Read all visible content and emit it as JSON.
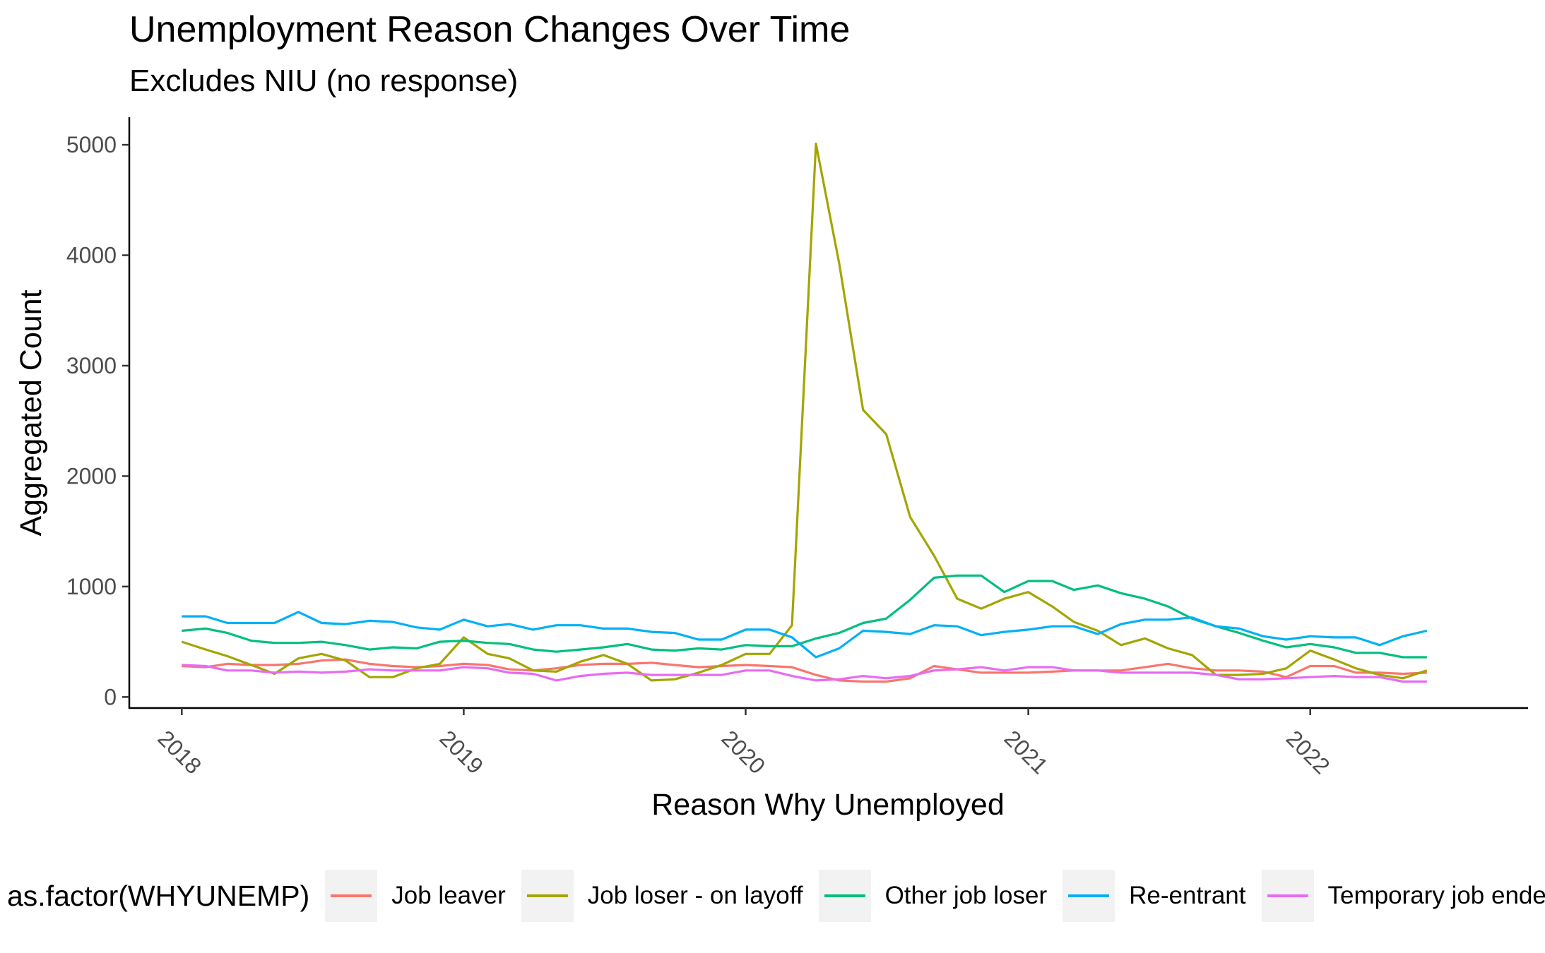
{
  "title": "Unemployment Reason Changes Over Time",
  "subtitle": "Excludes NIU (no response)",
  "chart_data": {
    "type": "line",
    "title": "Unemployment Reason Changes Over Time",
    "subtitle": "Excludes NIU (no response)",
    "xlabel": "Reason Why Unemployed",
    "ylabel": "Aggregated Count",
    "xlim": [
      "2017-10-25",
      "2022-10-10"
    ],
    "ylim": [
      -100,
      5250
    ],
    "x_ticks": [
      "2018",
      "2019",
      "2020",
      "2021",
      "2022"
    ],
    "y_ticks": [
      0,
      1000,
      2000,
      3000,
      4000,
      5000
    ],
    "y_tick_labels": [
      "0",
      "1000",
      "2000",
      "3000",
      "4000",
      "5000"
    ],
    "grid": false,
    "legend_position": "bottom",
    "legend_title": "as.factor(WHYUNEMP)",
    "x": [
      "2018-01",
      "2018-02",
      "2018-03",
      "2018-04",
      "2018-05",
      "2018-06",
      "2018-07",
      "2018-08",
      "2018-09",
      "2018-10",
      "2018-11",
      "2018-12",
      "2019-01",
      "2019-02",
      "2019-03",
      "2019-04",
      "2019-05",
      "2019-06",
      "2019-07",
      "2019-08",
      "2019-09",
      "2019-10",
      "2019-11",
      "2019-12",
      "2020-01",
      "2020-02",
      "2020-03",
      "2020-04",
      "2020-05",
      "2020-06",
      "2020-07",
      "2020-08",
      "2020-09",
      "2020-10",
      "2020-11",
      "2020-12",
      "2021-01",
      "2021-02",
      "2021-03",
      "2021-04",
      "2021-05",
      "2021-06",
      "2021-07",
      "2021-08",
      "2021-09",
      "2021-10",
      "2021-11",
      "2021-12",
      "2022-01",
      "2022-02",
      "2022-03",
      "2022-04",
      "2022-05",
      "2022-06"
    ],
    "series": [
      {
        "name": "Job leaver",
        "color": "#F8766D",
        "values": [
          280,
          270,
          300,
          290,
          290,
          300,
          330,
          340,
          300,
          280,
          270,
          280,
          300,
          290,
          250,
          240,
          260,
          290,
          300,
          300,
          310,
          290,
          270,
          280,
          290,
          280,
          270,
          200,
          150,
          140,
          140,
          170,
          280,
          250,
          220,
          220,
          220,
          230,
          240,
          240,
          240,
          270,
          300,
          260,
          240,
          240,
          230,
          180,
          280,
          280,
          220,
          220,
          210,
          220
        ]
      },
      {
        "name": "Job loser - on layoff",
        "color": "#A3A500",
        "values": [
          500,
          430,
          370,
          290,
          210,
          350,
          390,
          330,
          180,
          180,
          260,
          300,
          540,
          390,
          350,
          240,
          230,
          320,
          380,
          300,
          150,
          160,
          220,
          290,
          390,
          390,
          650,
          5010,
          3930,
          2600,
          2380,
          1630,
          1280,
          890,
          800,
          890,
          950,
          820,
          680,
          600,
          470,
          530,
          440,
          380,
          200,
          200,
          210,
          260,
          420,
          340,
          260,
          200,
          170,
          240
        ]
      },
      {
        "name": "Other job loser",
        "color": "#00BF7D",
        "values": [
          600,
          620,
          580,
          510,
          490,
          490,
          500,
          470,
          430,
          450,
          440,
          500,
          510,
          490,
          480,
          430,
          410,
          430,
          450,
          480,
          430,
          420,
          440,
          430,
          470,
          460,
          460,
          530,
          580,
          670,
          710,
          880,
          1080,
          1100,
          1100,
          950,
          1050,
          1050,
          970,
          1010,
          940,
          890,
          820,
          710,
          640,
          580,
          510,
          450,
          480,
          450,
          400,
          400,
          360,
          360
        ]
      },
      {
        "name": "Re-entrant",
        "color": "#00B0F6",
        "values": [
          730,
          730,
          670,
          670,
          670,
          770,
          670,
          660,
          690,
          680,
          630,
          610,
          700,
          640,
          660,
          610,
          650,
          650,
          620,
          620,
          590,
          580,
          520,
          520,
          610,
          610,
          540,
          360,
          440,
          600,
          590,
          570,
          650,
          640,
          560,
          590,
          610,
          640,
          640,
          570,
          660,
          700,
          700,
          720,
          640,
          620,
          550,
          520,
          550,
          540,
          540,
          470,
          550,
          600
        ]
      },
      {
        "name": "Temporary job ended",
        "color": "#E76BF3",
        "values": [
          290,
          280,
          240,
          240,
          220,
          230,
          220,
          230,
          250,
          240,
          240,
          240,
          270,
          260,
          220,
          210,
          150,
          190,
          210,
          220,
          200,
          200,
          200,
          200,
          240,
          240,
          190,
          150,
          160,
          190,
          170,
          190,
          240,
          250,
          270,
          240,
          270,
          270,
          240,
          240,
          220,
          220,
          220,
          220,
          200,
          160,
          160,
          170,
          180,
          190,
          180,
          180,
          140,
          140
        ]
      }
    ]
  }
}
